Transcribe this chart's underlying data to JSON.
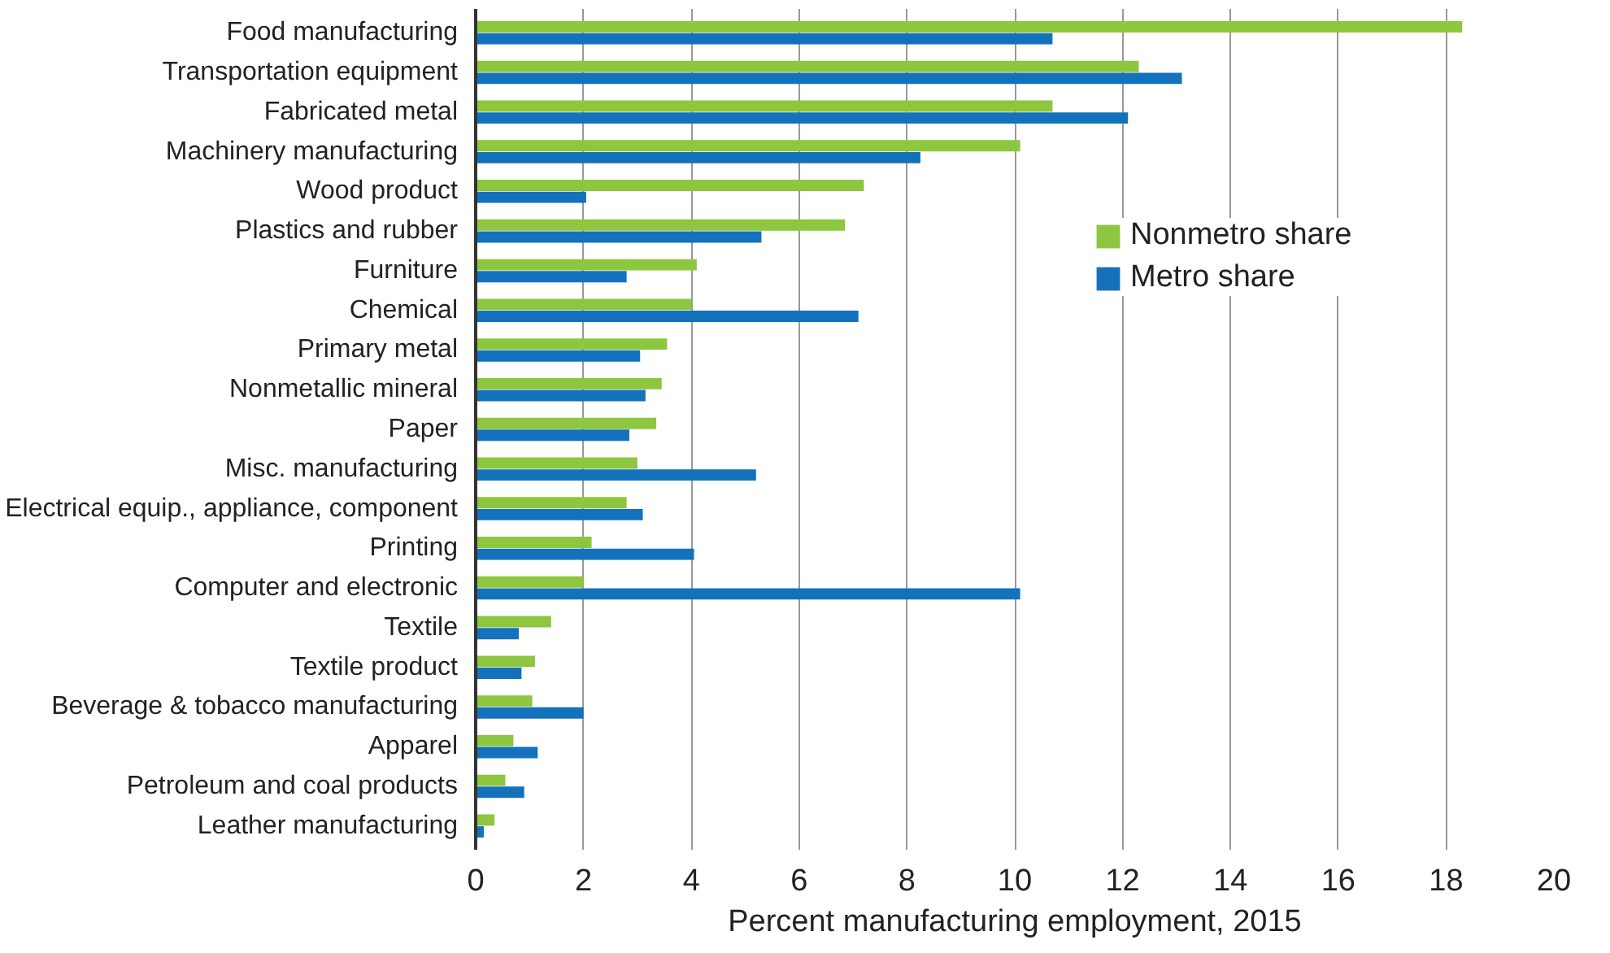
{
  "chart_data": {
    "type": "bar",
    "orientation": "horizontal",
    "xlabel": "Percent manufacturing employment, 2015",
    "categories": [
      "Food manufacturing",
      "Transportation equipment",
      "Fabricated metal",
      "Machinery manufacturing",
      "Wood product",
      "Plastics and rubber",
      "Furniture",
      "Chemical",
      "Primary metal",
      "Nonmetallic mineral",
      "Paper",
      "Misc. manufacturing",
      "Electrical equip., appliance, component",
      "Printing",
      "Computer and electronic",
      "Textile",
      "Textile product",
      "Beverage & tobacco manufacturing",
      "Apparel",
      "Petroleum and coal products",
      "Leather manufacturing"
    ],
    "series": [
      {
        "name": "Nonmetro share",
        "color": "#8dc63f",
        "values": [
          18.3,
          12.3,
          10.7,
          10.1,
          7.2,
          6.85,
          4.1,
          4.0,
          3.55,
          3.45,
          3.35,
          3.0,
          2.8,
          2.15,
          2.0,
          1.4,
          1.1,
          1.05,
          0.7,
          0.55,
          0.35
        ]
      },
      {
        "name": "Metro share",
        "color": "#1372bb",
        "values": [
          10.7,
          13.1,
          12.1,
          8.25,
          2.05,
          5.3,
          2.8,
          7.1,
          3.05,
          3.15,
          2.85,
          5.2,
          3.1,
          4.05,
          10.1,
          0.8,
          0.85,
          2.0,
          1.15,
          0.9,
          0.15
        ]
      }
    ],
    "xlim": [
      0,
      20
    ],
    "xticks": [
      0,
      2,
      4,
      6,
      8,
      10,
      12,
      14,
      16,
      18,
      20
    ],
    "grid": "x",
    "legend": "right"
  }
}
